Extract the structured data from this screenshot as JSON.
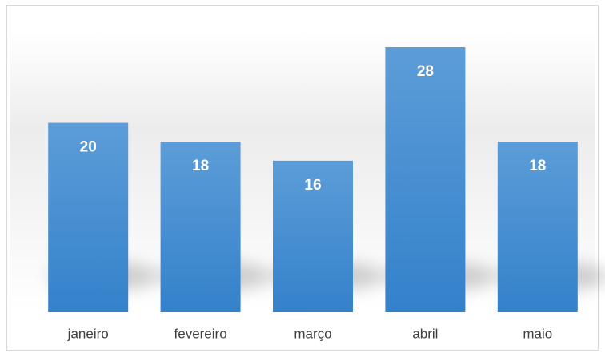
{
  "chart_data": {
    "type": "bar",
    "categories": [
      "janeiro",
      "fevereiro",
      "março",
      "abril",
      "maio"
    ],
    "values": [
      20,
      18,
      16,
      28,
      18
    ],
    "color": "#4a8fd4"
  }
}
